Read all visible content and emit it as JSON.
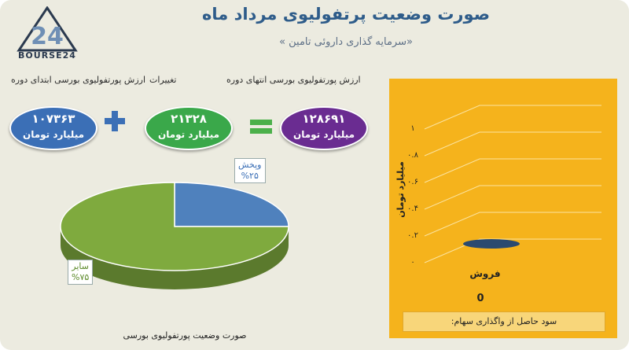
{
  "header": {
    "title": "صورت وضعیت پرتفولیوی مرداد ماه",
    "subtitle": "«سرمایه گذاری داروئی تامین »",
    "logo_text": "BOURSE24"
  },
  "equation": {
    "labels": {
      "end": "ارزش پورتفولیوی بورسی انتهای دوره",
      "change": "تغییرات",
      "start": "ارزش پورتفولیوی بورسی ابتدای دوره"
    },
    "end": {
      "value": "۱۲۸۶۹۱",
      "unit": "میلیارد تومان",
      "color": "#6a2c91"
    },
    "change": {
      "value": "۲۱۳۲۸",
      "unit": "میلیارد تومان",
      "color": "#3aa84a"
    },
    "start": {
      "value": "۱۰۷۳۶۳",
      "unit": "میلیارد تومان",
      "color": "#3b6fb6"
    },
    "equals_color": "#4bb04a",
    "plus_color": "#3b6fb6"
  },
  "chart_data": [
    {
      "type": "pie",
      "title": "صورت وضعیت پورتفولیوی بورسی",
      "slices": [
        {
          "name": "وپخش",
          "value": 25,
          "label": "%۲۵",
          "color": "#4f81bd"
        },
        {
          "name": "سایر",
          "value": 75,
          "label": "%۷۵",
          "color": "#7faa3e"
        }
      ]
    },
    {
      "type": "bar",
      "categories": [
        "فروش"
      ],
      "values": [
        0
      ],
      "value_labels": [
        "0"
      ],
      "ylabel": "میلیارد تومان",
      "ylim": [
        0,
        1
      ],
      "ticks": [
        "۰",
        "۰.۲",
        "۰.۴",
        "۰.۶",
        "۰.۸",
        "۱"
      ],
      "grid": true,
      "background": "#f5b31c",
      "bar_color": "#2b4a6f",
      "footer_label": "سود حاصل از واگذاری سهام:"
    }
  ]
}
